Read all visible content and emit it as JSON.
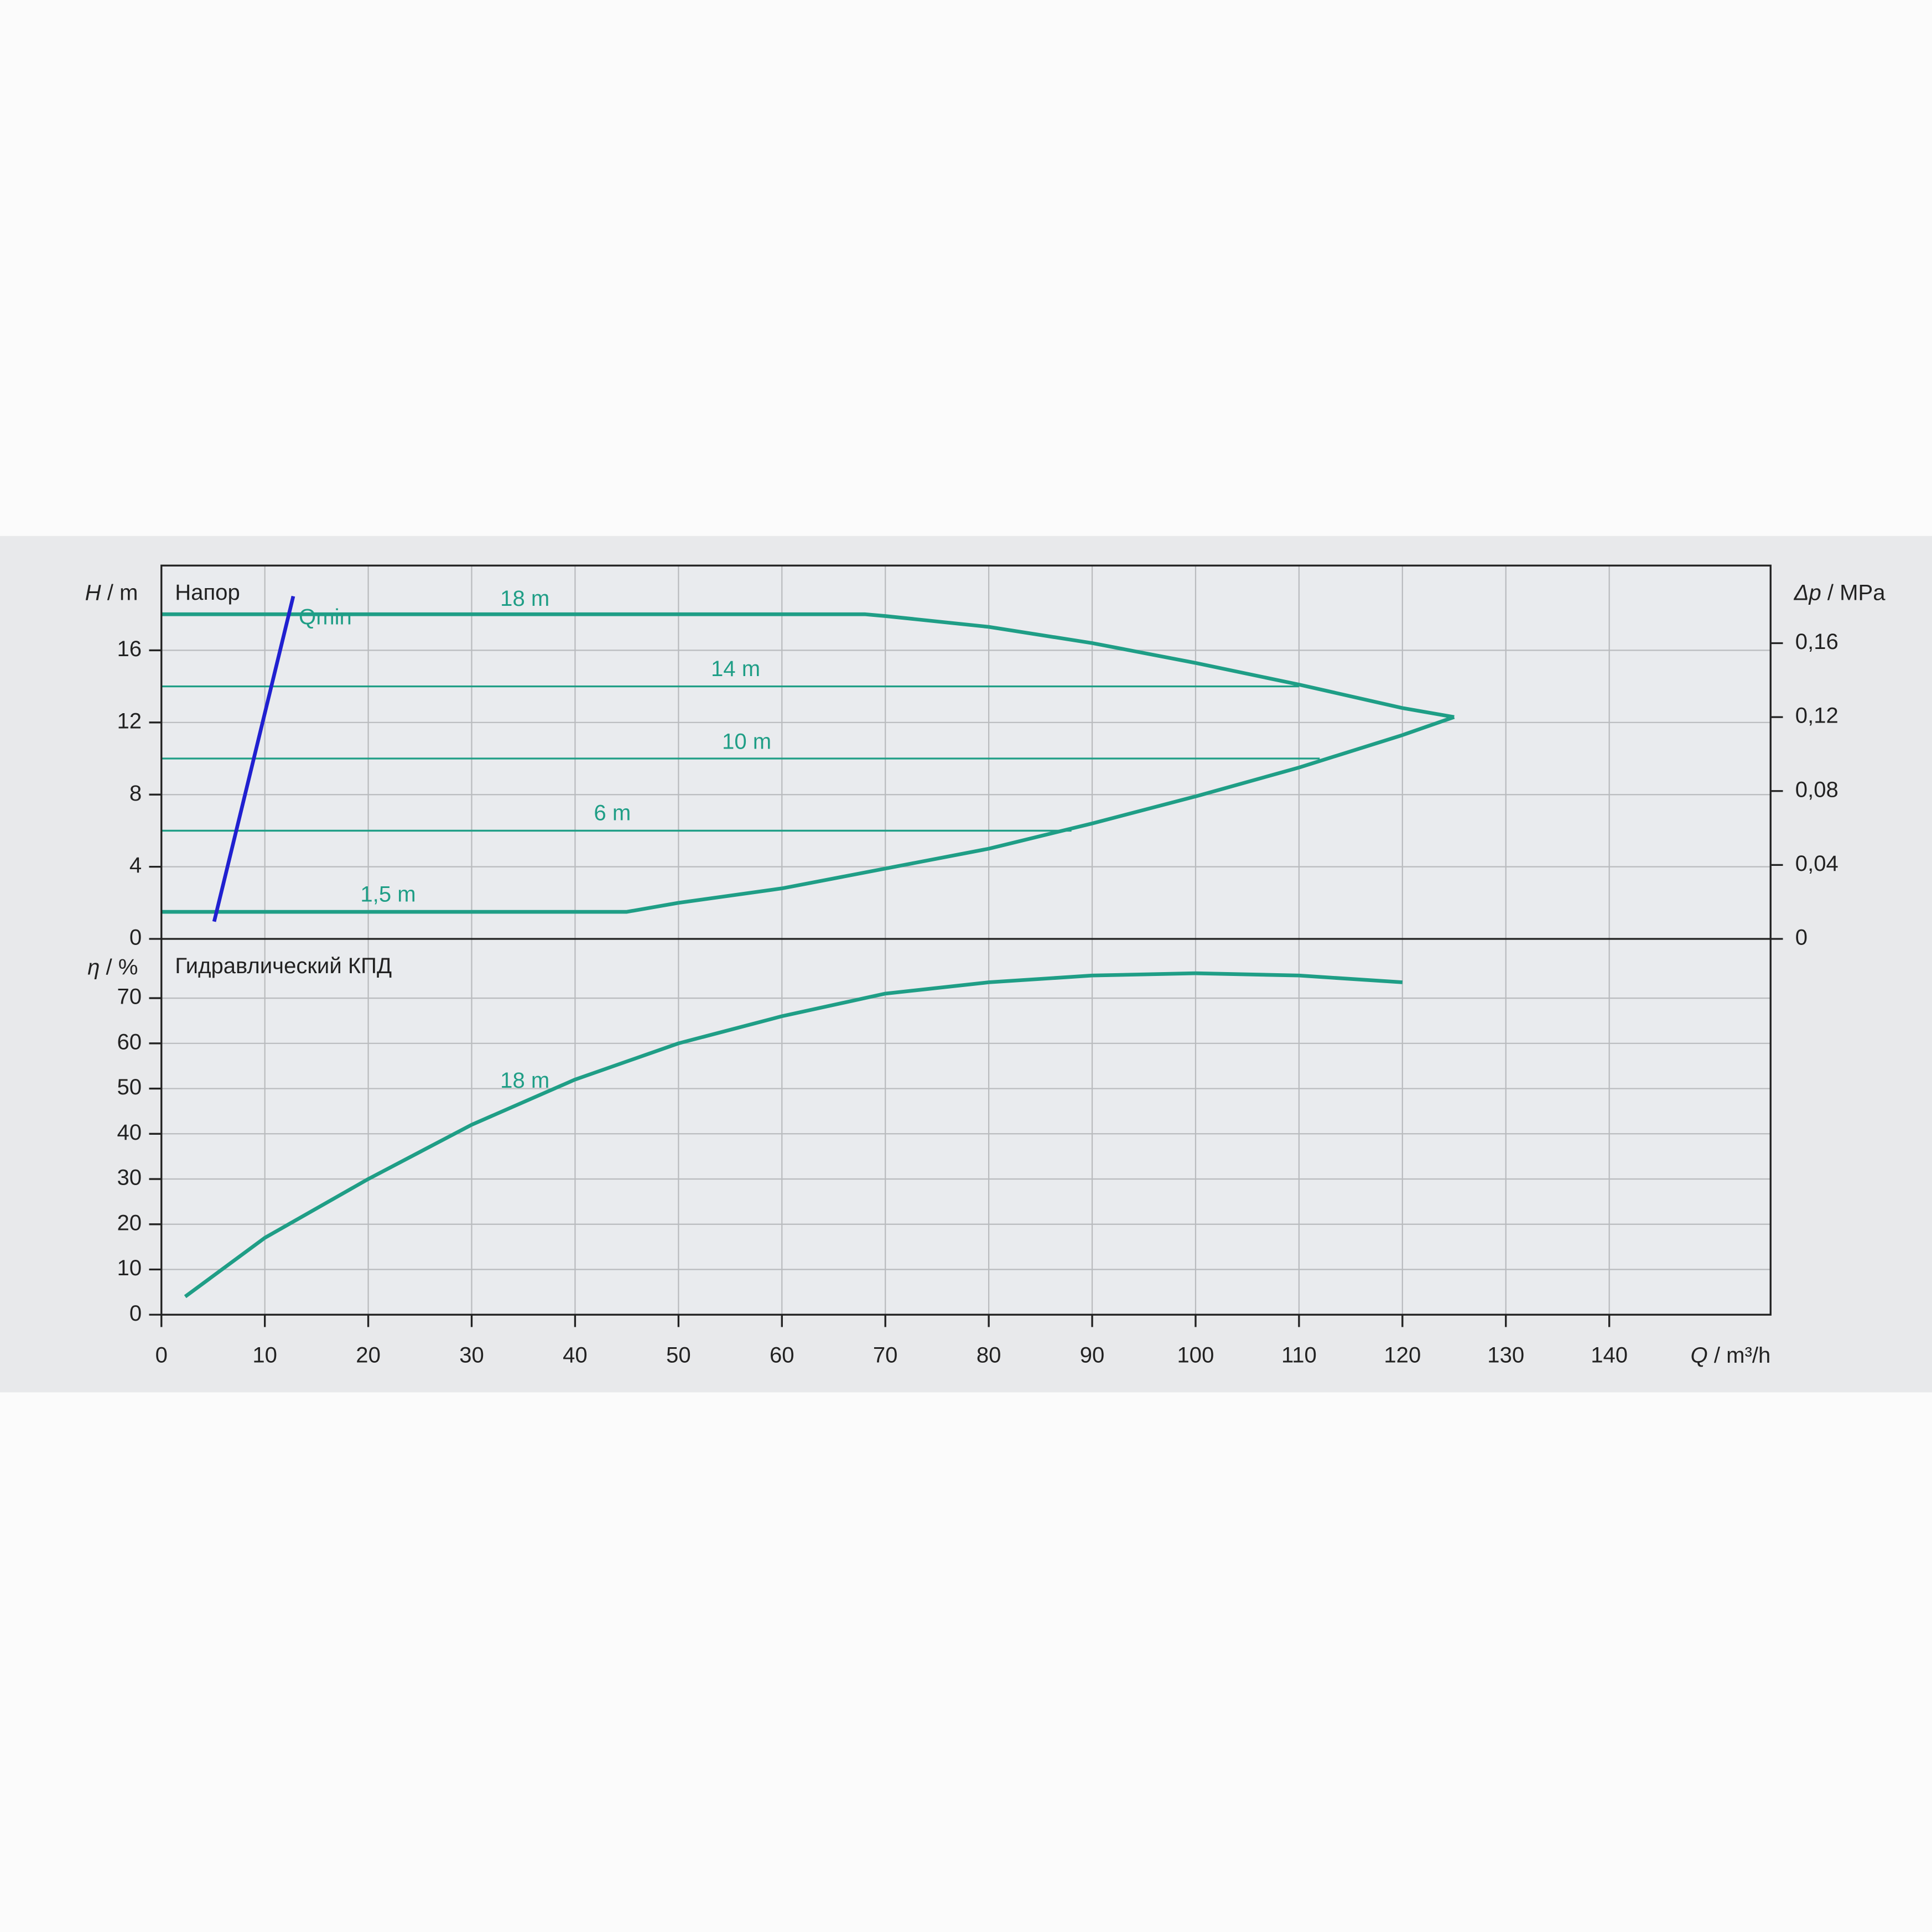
{
  "chart_data": [
    {
      "type": "line",
      "title": "Напор",
      "ylabel": {
        "symbol": "H",
        "unit": "/ m"
      },
      "y2label": {
        "symbol": "Δp",
        "unit": "/ MPa"
      },
      "xlim": [
        0,
        155.6
      ],
      "ylim": [
        0,
        20.7
      ],
      "yticks": [
        0,
        4,
        8,
        12,
        16
      ],
      "y2lim": [
        0,
        0.202
      ],
      "y2ticks": [
        0,
        {
          "value": 0.04,
          "label": "0,04"
        },
        {
          "value": 0.08,
          "label": "0,08"
        },
        {
          "value": 0.12,
          "label": "0,12"
        },
        {
          "value": 0.16,
          "label": "0,16"
        }
      ],
      "grid": true,
      "series": [
        {
          "name": "18 m",
          "color": "#1f9e86",
          "width": 3,
          "x": [
            0,
            68,
            70,
            80,
            90,
            100,
            110,
            120,
            125
          ],
          "values": [
            18,
            18,
            17.9,
            17.3,
            16.4,
            15.3,
            14.1,
            12.8,
            12.3
          ]
        },
        {
          "name": "14 m",
          "color": "#1f9e86",
          "width": 1.5,
          "x": [
            0,
            110
          ],
          "values": [
            14,
            14
          ]
        },
        {
          "name": "10 m",
          "color": "#1f9e86",
          "width": 1.5,
          "x": [
            0,
            112
          ],
          "values": [
            10,
            10
          ]
        },
        {
          "name": "6 m",
          "color": "#1f9e86",
          "width": 1.5,
          "x": [
            0,
            88
          ],
          "values": [
            6,
            6
          ]
        },
        {
          "name": "1,5 m",
          "color": "#1f9e86",
          "width": 3,
          "x": [
            0,
            45,
            50,
            60,
            70,
            80,
            90,
            100,
            110,
            120,
            125
          ],
          "values": [
            1.5,
            1.5,
            2,
            2.8,
            3.9,
            5,
            6.4,
            7.9,
            9.5,
            11.3,
            12.3
          ]
        },
        {
          "name": "Qmin",
          "color": "#2020d0",
          "width": 3,
          "x": [
            5.1,
            12.75
          ],
          "values": [
            0.96,
            19.0
          ]
        }
      ]
    },
    {
      "type": "line",
      "title": "Гидравлический КПД",
      "ylabel": {
        "symbol": "η",
        "unit": "/ %"
      },
      "xlabel": {
        "symbol": "Q",
        "unit": "/ m³/h"
      },
      "xlim": [
        0,
        155.6
      ],
      "xticks": [
        0,
        10,
        20,
        30,
        40,
        50,
        60,
        70,
        80,
        90,
        100,
        110,
        120,
        130,
        140
      ],
      "ylim": [
        0,
        83.1
      ],
      "yticks": [
        0,
        10,
        20,
        30,
        40,
        50,
        60,
        70
      ],
      "grid": true,
      "series": [
        {
          "name": "18 m",
          "color": "#1f9e86",
          "width": 3,
          "x": [
            2.3,
            10,
            20,
            30,
            40,
            50,
            60,
            70,
            80,
            90,
            100,
            110,
            120
          ],
          "values": [
            4,
            17,
            30,
            42,
            52,
            60,
            66,
            71,
            73.5,
            75,
            75.5,
            75,
            73.5
          ]
        }
      ]
    }
  ]
}
